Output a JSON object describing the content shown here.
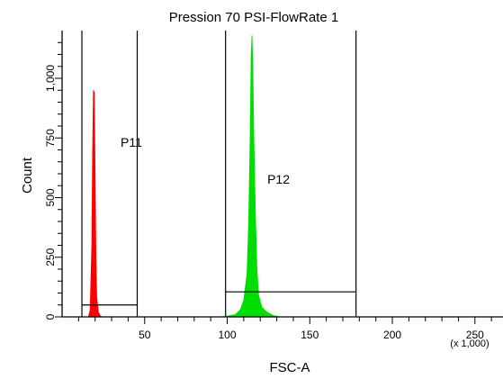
{
  "chart_data": {
    "type": "area",
    "title": "Pression 70 PSI-FlowRate 1",
    "xlabel": "FSC-A",
    "x_unit_label": "(x 1,000)",
    "ylabel": "Count",
    "xlim": [
      0,
      267
    ],
    "ylim": [
      0,
      1200
    ],
    "x_ticks": [
      50,
      100,
      150,
      200,
      250
    ],
    "x_tick_labels": [
      "50",
      "100",
      "150",
      "200",
      "250"
    ],
    "y_ticks": [
      0,
      250,
      500,
      750,
      1000
    ],
    "y_tick_labels": [
      "0",
      "250",
      "500",
      "750",
      "1,000"
    ],
    "grid": false,
    "series": [
      {
        "color": "#ff0000",
        "x": [
          16,
          17,
          18,
          18.5,
          19,
          19.5,
          20,
          20.5,
          21,
          22,
          23,
          24
        ],
        "y": [
          0,
          30,
          300,
          700,
          950,
          940,
          600,
          250,
          80,
          20,
          5,
          0
        ]
      },
      {
        "color": "#00dd00",
        "x": [
          96,
          100,
          105,
          108,
          110,
          112,
          113,
          114,
          114.5,
          115,
          115.5,
          116,
          117,
          118,
          119,
          121,
          124,
          128,
          132
        ],
        "y": [
          0,
          3,
          10,
          30,
          70,
          180,
          400,
          800,
          1100,
          1180,
          1050,
          800,
          450,
          200,
          90,
          40,
          20,
          5,
          0
        ]
      }
    ],
    "gates": [
      {
        "name": "P11",
        "x_min": 12,
        "x_max": 45.5,
        "y": 50
      },
      {
        "name": "P12",
        "x_min": 99,
        "x_max": 178,
        "y": 105
      }
    ]
  }
}
